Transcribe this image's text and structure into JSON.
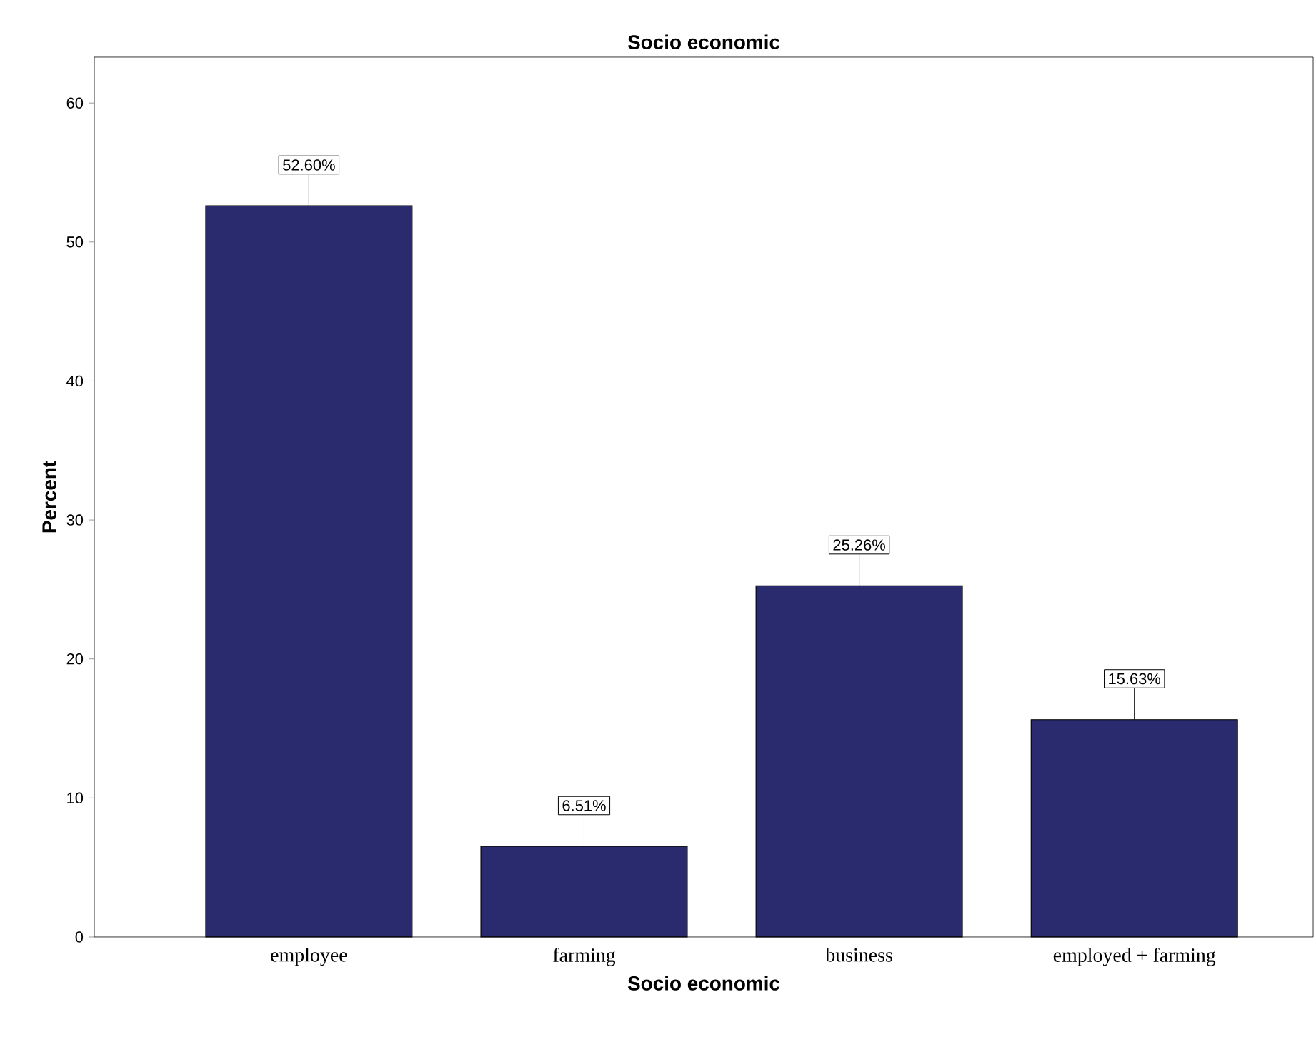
{
  "chart_data": {
    "type": "bar",
    "title": "Socio economic",
    "xlabel": "Socio economic",
    "ylabel": "Percent",
    "categories": [
      "employee",
      "farming",
      "business",
      "employed + farming"
    ],
    "values": [
      52.6,
      6.51,
      25.26,
      15.63
    ],
    "value_labels": [
      "52.60%",
      "6.51%",
      "25.26%",
      "15.63%"
    ],
    "color": "#2a2a6e",
    "ylim": [
      0,
      63.3
    ],
    "yticks": [
      0,
      10,
      20,
      30,
      40,
      50,
      60
    ]
  }
}
